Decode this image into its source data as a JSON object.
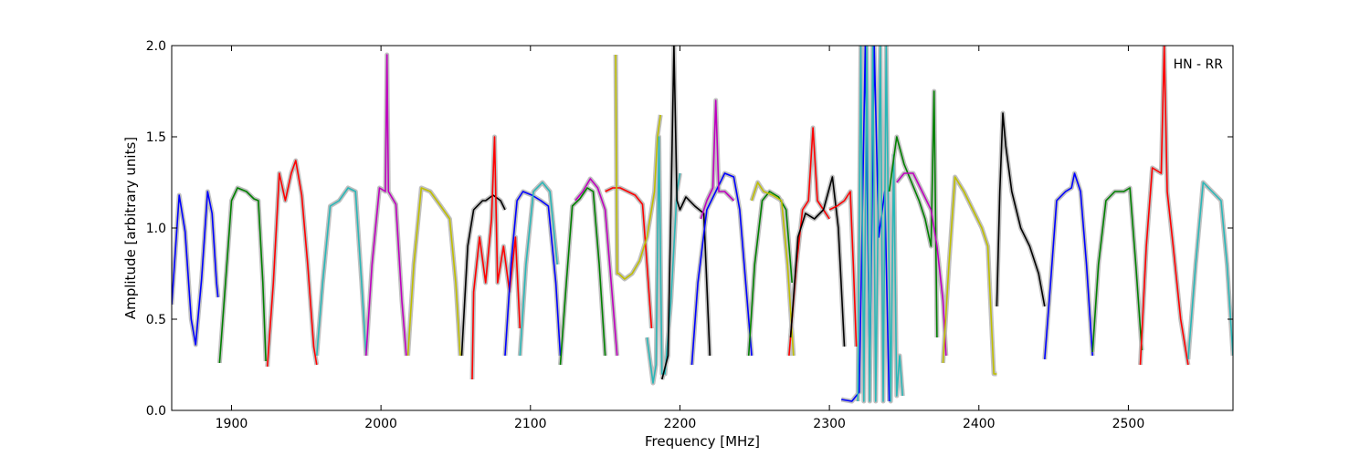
{
  "chart_data": {
    "type": "line",
    "title": "",
    "xlabel": "Frequency [MHz]",
    "ylabel": "Amplitude [arbitrary units]",
    "xlim": [
      1860,
      2570
    ],
    "ylim": [
      0.0,
      2.0
    ],
    "x_ticks": [
      1900,
      2000,
      2100,
      2200,
      2300,
      2400,
      2500
    ],
    "y_ticks": [
      0.0,
      0.5,
      1.0,
      1.5,
      2.0
    ],
    "annotation": "HN - RR",
    "grid": false,
    "background_color": "#c0c0c0",
    "series": [
      {
        "color": "#0000ff",
        "x": [
          1860,
          1865,
          1869,
          1873,
          1876,
          1880,
          1884,
          1887,
          1890,
          1891
        ],
        "y": [
          0.58,
          1.18,
          0.98,
          0.5,
          0.36,
          0.72,
          1.2,
          1.08,
          0.7,
          0.62
        ]
      },
      {
        "color": "#008000",
        "x": [
          1892,
          1896,
          1900,
          1904,
          1910,
          1915,
          1918,
          1921,
          1923
        ],
        "y": [
          0.26,
          0.7,
          1.15,
          1.22,
          1.2,
          1.16,
          1.15,
          0.7,
          0.27
        ]
      },
      {
        "color": "#ff0000",
        "x": [
          1924,
          1928,
          1932,
          1936,
          1940,
          1943,
          1947,
          1951,
          1955,
          1957
        ],
        "y": [
          0.24,
          0.7,
          1.3,
          1.15,
          1.3,
          1.37,
          1.18,
          0.8,
          0.35,
          0.25
        ]
      },
      {
        "color": "#2ab7b7",
        "x": [
          1957,
          1961,
          1966,
          1972,
          1978,
          1983,
          1987,
          1990
        ],
        "y": [
          0.3,
          0.7,
          1.12,
          1.15,
          1.22,
          1.2,
          0.7,
          0.3
        ]
      },
      {
        "color": "#bf00bf",
        "x": [
          1990,
          1994,
          1999,
          2003,
          2004,
          2005,
          2010,
          2014,
          2017
        ],
        "y": [
          0.3,
          0.8,
          1.22,
          1.2,
          1.95,
          1.2,
          1.13,
          0.6,
          0.3
        ]
      },
      {
        "color": "#bfbf00",
        "x": [
          2018,
          2022,
          2027,
          2033,
          2040,
          2046,
          2050,
          2053
        ],
        "y": [
          0.3,
          0.8,
          1.22,
          1.2,
          1.12,
          1.05,
          0.7,
          0.3
        ]
      },
      {
        "color": "#000000",
        "x": [
          2054,
          2058,
          2062,
          2068,
          2070,
          2075,
          2080,
          2083
        ],
        "y": [
          0.3,
          0.9,
          1.1,
          1.15,
          1.15,
          1.18,
          1.15,
          1.1
        ]
      },
      {
        "color": "#ff0000",
        "x": [
          2061,
          2062,
          2066,
          2070,
          2074,
          2076,
          2078,
          2082,
          2086,
          2090,
          2093
        ],
        "y": [
          0.17,
          0.65,
          0.95,
          0.7,
          1.05,
          1.5,
          0.7,
          0.9,
          0.65,
          0.95,
          0.45
        ]
      },
      {
        "color": "#0000ff",
        "x": [
          2083,
          2087,
          2091,
          2095,
          2101,
          2107,
          2112,
          2117,
          2120
        ],
        "y": [
          0.3,
          0.8,
          1.15,
          1.2,
          1.18,
          1.15,
          1.12,
          0.7,
          0.3
        ]
      },
      {
        "color": "#2ab7b7",
        "x": [
          2093,
          2097,
          2102,
          2108,
          2113,
          2118
        ],
        "y": [
          0.3,
          0.8,
          1.2,
          1.25,
          1.2,
          0.8
        ]
      },
      {
        "color": "#008000",
        "x": [
          2120,
          2124,
          2128,
          2133,
          2138,
          2142,
          2146,
          2150
        ],
        "y": [
          0.25,
          0.7,
          1.12,
          1.16,
          1.22,
          1.2,
          0.8,
          0.3
        ]
      },
      {
        "color": "#bf00bf",
        "x": [
          2130,
          2135,
          2140,
          2145,
          2150,
          2154,
          2158
        ],
        "y": [
          1.15,
          1.2,
          1.27,
          1.22,
          1.1,
          0.7,
          0.3
        ]
      },
      {
        "color": "#ff0000",
        "x": [
          2150,
          2155,
          2160,
          2165,
          2170,
          2175,
          2178,
          2181
        ],
        "y": [
          1.2,
          1.22,
          1.22,
          1.2,
          1.18,
          1.13,
          0.8,
          0.45
        ]
      },
      {
        "color": "#bfbf00",
        "x": [
          2157,
          2158,
          2159,
          2163,
          2168,
          2173,
          2178,
          2183,
          2185,
          2187
        ],
        "y": [
          1.95,
          0.75,
          0.75,
          0.72,
          0.75,
          0.82,
          0.95,
          1.2,
          1.5,
          1.62
        ]
      },
      {
        "color": "#2ab7b7",
        "x": [
          2178,
          2182,
          2184,
          2186,
          2188,
          2190,
          2194,
          2198,
          2200
        ],
        "y": [
          0.4,
          0.15,
          0.25,
          1.5,
          0.2,
          0.2,
          0.6,
          1.2,
          1.3
        ]
      },
      {
        "color": "#000000",
        "x": [
          2188,
          2192,
          2194,
          2196,
          2198,
          2200,
          2204,
          2210,
          2216,
          2220
        ],
        "y": [
          0.17,
          0.3,
          1.1,
          2.0,
          1.15,
          1.1,
          1.17,
          1.12,
          1.08,
          0.3
        ]
      },
      {
        "color": "#0000ff",
        "x": [
          2208,
          2212,
          2218,
          2224,
          2230,
          2236,
          2240,
          2244,
          2248
        ],
        "y": [
          0.25,
          0.7,
          1.1,
          1.2,
          1.3,
          1.28,
          1.1,
          0.7,
          0.3
        ]
      },
      {
        "color": "#bf00bf",
        "x": [
          2214,
          2218,
          2222,
          2224,
          2226,
          2230,
          2236
        ],
        "y": [
          1.05,
          1.15,
          1.22,
          1.7,
          1.2,
          1.2,
          1.15
        ]
      },
      {
        "color": "#008000",
        "x": [
          2246,
          2250,
          2255,
          2260,
          2266,
          2271,
          2275
        ],
        "y": [
          0.3,
          0.8,
          1.15,
          1.2,
          1.17,
          1.1,
          0.7
        ]
      },
      {
        "color": "#bfbf00",
        "x": [
          2248,
          2252,
          2256,
          2262,
          2268,
          2272,
          2276
        ],
        "y": [
          1.15,
          1.25,
          1.2,
          1.18,
          1.15,
          0.8,
          0.3
        ]
      },
      {
        "color": "#ff0000",
        "x": [
          2273,
          2278,
          2282,
          2286,
          2289,
          2292,
          2296,
          2300
        ],
        "y": [
          0.3,
          0.8,
          1.1,
          1.15,
          1.55,
          1.15,
          1.1,
          1.05
        ]
      },
      {
        "color": "#000000",
        "x": [
          2274,
          2279,
          2284,
          2290,
          2296,
          2302,
          2306,
          2310
        ],
        "y": [
          0.4,
          0.95,
          1.08,
          1.05,
          1.1,
          1.28,
          1.0,
          0.35
        ]
      },
      {
        "color": "#ff0000",
        "x": [
          2300,
          2305,
          2310,
          2314,
          2316,
          2318
        ],
        "y": [
          1.1,
          1.12,
          1.15,
          1.2,
          0.8,
          0.35
        ]
      },
      {
        "color": "#0000ff",
        "x": [
          2308,
          2315,
          2320,
          2324,
          2327,
          2330,
          2333,
          2337,
          2340
        ],
        "y": [
          0.06,
          0.05,
          0.1,
          2.0,
          0.2,
          2.0,
          0.95,
          1.2,
          0.05
        ]
      },
      {
        "color": "#2ab7b7",
        "x": [
          2319,
          2321,
          2323,
          2325,
          2327,
          2329,
          2331,
          2334,
          2336,
          2338,
          2341,
          2343,
          2345,
          2347,
          2349
        ],
        "y": [
          0.05,
          2.0,
          0.05,
          2.0,
          0.05,
          2.0,
          0.05,
          2.0,
          0.05,
          2.0,
          0.05,
          1.4,
          0.08,
          0.3,
          0.08
        ]
      },
      {
        "color": "#008000",
        "x": [
          2340,
          2345,
          2350,
          2355,
          2360,
          2364,
          2368,
          2370,
          2372
        ],
        "y": [
          1.2,
          1.5,
          1.35,
          1.25,
          1.15,
          1.05,
          0.9,
          1.75,
          0.4
        ]
      },
      {
        "color": "#bf00bf",
        "x": [
          2345,
          2350,
          2356,
          2362,
          2368,
          2372,
          2376,
          2378
        ],
        "y": [
          1.25,
          1.3,
          1.3,
          1.2,
          1.1,
          0.9,
          0.6,
          0.3
        ]
      },
      {
        "color": "#bfbf00",
        "x": [
          2376,
          2380,
          2384,
          2390,
          2396,
          2402,
          2406,
          2410,
          2412
        ],
        "y": [
          0.26,
          0.8,
          1.28,
          1.2,
          1.1,
          1.0,
          0.9,
          0.2,
          0.2
        ]
      },
      {
        "color": "#000000",
        "x": [
          2412,
          2414,
          2416,
          2418,
          2422,
          2428,
          2434,
          2440,
          2444
        ],
        "y": [
          0.57,
          1.2,
          1.63,
          1.45,
          1.2,
          1.0,
          0.9,
          0.75,
          0.57
        ]
      },
      {
        "color": "#0000ff",
        "x": [
          2444,
          2448,
          2452,
          2458,
          2462,
          2464,
          2468,
          2472,
          2476
        ],
        "y": [
          0.28,
          0.7,
          1.15,
          1.2,
          1.22,
          1.3,
          1.2,
          0.8,
          0.3
        ]
      },
      {
        "color": "#008000",
        "x": [
          2476,
          2480,
          2485,
          2491,
          2497,
          2501,
          2505,
          2509
        ],
        "y": [
          0.32,
          0.8,
          1.15,
          1.2,
          1.2,
          1.22,
          0.8,
          0.33
        ]
      },
      {
        "color": "#ff0000",
        "x": [
          2508,
          2512,
          2516,
          2522,
          2524,
          2526,
          2530,
          2535,
          2540
        ],
        "y": [
          0.25,
          0.9,
          1.33,
          1.3,
          2.0,
          1.2,
          0.9,
          0.5,
          0.25
        ]
      },
      {
        "color": "#2ab7b7",
        "x": [
          2540,
          2545,
          2550,
          2556,
          2562,
          2566,
          2570
        ],
        "y": [
          0.28,
          0.8,
          1.25,
          1.2,
          1.15,
          0.8,
          0.3
        ]
      }
    ]
  }
}
